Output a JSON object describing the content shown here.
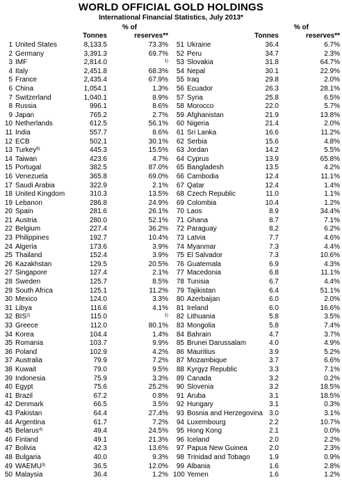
{
  "title": "WORLD OFFICIAL GOLD HOLDINGS",
  "subtitle": "International Financial Statistics, July 2013*",
  "headers": {
    "tonnes": "Tonnes",
    "pct_line1": "% of",
    "pct_line2": "reserves**"
  },
  "left": [
    {
      "rank": "1",
      "name": "United States",
      "tonnes": "8,133.5",
      "pct": "73.3%"
    },
    {
      "rank": "2",
      "name": "Germany",
      "tonnes": "3,391.3",
      "pct": "69.7%"
    },
    {
      "rank": "3",
      "name": "IMF",
      "tonnes": "2,814.0",
      "pct": "",
      "pct_note": "1)"
    },
    {
      "rank": "4",
      "name": "Italy",
      "tonnes": "2,451.8",
      "pct": "68.3%"
    },
    {
      "rank": "5",
      "name": "France",
      "tonnes": "2,435.4",
      "pct": "67.9%"
    },
    {
      "rank": "6",
      "name": "China",
      "tonnes": "1,054.1",
      "pct": "1.3%"
    },
    {
      "rank": "7",
      "name": "Switzerland",
      "tonnes": "1,040.1",
      "pct": "8.9%"
    },
    {
      "rank": "8",
      "name": "Russia",
      "tonnes": "996.1",
      "pct": "8.6%"
    },
    {
      "rank": "9",
      "name": "Japan",
      "tonnes": "765.2",
      "pct": "2.7%"
    },
    {
      "rank": "10",
      "name": "Netherlands",
      "tonnes": "612.5",
      "pct": "56.1%"
    },
    {
      "rank": "11",
      "name": "India",
      "tonnes": "557.7",
      "pct": "8.6%"
    },
    {
      "rank": "12",
      "name": "ECB",
      "tonnes": "502.1",
      "pct": "30.1%"
    },
    {
      "rank": "13",
      "name": "Turkey",
      "name_note": "6)",
      "tonnes": "445.3",
      "pct": "15.5%"
    },
    {
      "rank": "14",
      "name": "Taiwan",
      "tonnes": "423.6",
      "pct": "4.7%"
    },
    {
      "rank": "15",
      "name": "Portugal",
      "tonnes": "382.5",
      "pct": "87.0%"
    },
    {
      "rank": "16",
      "name": "Venezuela",
      "tonnes": "365.8",
      "pct": "69.0%"
    },
    {
      "rank": "17",
      "name": "Saudi Arabia",
      "tonnes": "322.9",
      "pct": "2.1%"
    },
    {
      "rank": "18",
      "name": "United Kingdom",
      "tonnes": "310.3",
      "pct": "13.5%"
    },
    {
      "rank": "19",
      "name": "Lebanon",
      "tonnes": "286.8",
      "pct": "24.9%"
    },
    {
      "rank": "20",
      "name": "Spain",
      "tonnes": "281.6",
      "pct": "26.1%"
    },
    {
      "rank": "21",
      "name": "Austria",
      "tonnes": "280.0",
      "pct": "52.1%"
    },
    {
      "rank": "22",
      "name": "Belgium",
      "tonnes": "227.4",
      "pct": "36.2%"
    },
    {
      "rank": "23",
      "name": "Philippines",
      "tonnes": "192.7",
      "pct": "10.4%"
    },
    {
      "rank": "24",
      "name": "Algeria",
      "tonnes": "173.6",
      "pct": "3.9%"
    },
    {
      "rank": "25",
      "name": "Thailand",
      "tonnes": "152.4",
      "pct": "3.9%"
    },
    {
      "rank": "26",
      "name": "Kazakhstan",
      "tonnes": "129.5",
      "pct": "20.5%"
    },
    {
      "rank": "27",
      "name": "Singapore",
      "tonnes": "127.4",
      "pct": "2.1%"
    },
    {
      "rank": "28",
      "name": "Sweden",
      "tonnes": "125.7",
      "pct": "8.5%"
    },
    {
      "rank": "29",
      "name": "South Africa",
      "tonnes": "125.1",
      "pct": "11.2%"
    },
    {
      "rank": "30",
      "name": "Mexico",
      "tonnes": "124.0",
      "pct": "3.3%"
    },
    {
      "rank": "31",
      "name": "Libya",
      "tonnes": "116.6",
      "pct": "4.1%"
    },
    {
      "rank": "32",
      "name": "BIS",
      "name_note": "2)",
      "tonnes": "115.0",
      "pct": "",
      "pct_note": "1)"
    },
    {
      "rank": "33",
      "name": "Greece",
      "tonnes": "112.0",
      "pct": "80.1%"
    },
    {
      "rank": "34",
      "name": "Korea",
      "tonnes": "104.4",
      "pct": "1.4%"
    },
    {
      "rank": "35",
      "name": "Romania",
      "tonnes": "103.7",
      "pct": "9.9%"
    },
    {
      "rank": "36",
      "name": "Poland",
      "tonnes": "102.9",
      "pct": "4.2%"
    },
    {
      "rank": "37",
      "name": "Australia",
      "tonnes": "79.9",
      "pct": "7.2%"
    },
    {
      "rank": "38",
      "name": "Kuwait",
      "tonnes": "79.0",
      "pct": "9.5%"
    },
    {
      "rank": "39",
      "name": "Indonesia",
      "tonnes": "75.9",
      "pct": "3.3%"
    },
    {
      "rank": "40",
      "name": "Egypt",
      "tonnes": "75.6",
      "pct": "25.2%"
    },
    {
      "rank": "41",
      "name": "Brazil",
      "tonnes": "67.2",
      "pct": "0.8%"
    },
    {
      "rank": "42",
      "name": "Denmark",
      "tonnes": "66.5",
      "pct": "3.5%"
    },
    {
      "rank": "43",
      "name": "Pakistan",
      "tonnes": "64.4",
      "pct": "27.4%"
    },
    {
      "rank": "44",
      "name": "Argentina",
      "tonnes": "61.7",
      "pct": "7.2%"
    },
    {
      "rank": "45",
      "name": "Belarus",
      "name_note": "4)",
      "tonnes": "49.4",
      "pct": "24.5%"
    },
    {
      "rank": "46",
      "name": "Finland",
      "tonnes": "49.1",
      "pct": "21.3%"
    },
    {
      "rank": "47",
      "name": "Bolivia",
      "tonnes": "42.3",
      "pct": "13.6%"
    },
    {
      "rank": "48",
      "name": "Bulgaria",
      "tonnes": "40.0",
      "pct": "9.3%"
    },
    {
      "rank": "49",
      "name": "WAEMU",
      "name_note": "3)",
      "tonnes": "36.5",
      "pct": "12.0%"
    },
    {
      "rank": "50",
      "name": "Malaysia",
      "tonnes": "36.4",
      "pct": "1.2%"
    }
  ],
  "right": [
    {
      "rank": "51",
      "name": "Ukraine",
      "tonnes": "36.4",
      "pct": "6.7%"
    },
    {
      "rank": "52",
      "name": "Peru",
      "tonnes": "34.7",
      "pct": "2.3%"
    },
    {
      "rank": "53",
      "name": "Slovakia",
      "tonnes": "31.8",
      "pct": "64.7%"
    },
    {
      "rank": "54",
      "name": "Nepal",
      "tonnes": "30.1",
      "pct": "22.9%"
    },
    {
      "rank": "55",
      "name": "Iraq",
      "tonnes": "29.8",
      "pct": "2.0%"
    },
    {
      "rank": "56",
      "name": "Ecuador",
      "tonnes": "26.3",
      "pct": "28.1%"
    },
    {
      "rank": "57",
      "name": "Syria",
      "tonnes": "25.8",
      "pct": "6.5%"
    },
    {
      "rank": "58",
      "name": "Morocco",
      "tonnes": "22.0",
      "pct": "5.7%"
    },
    {
      "rank": "59",
      "name": "Afghanistan",
      "tonnes": "21.9",
      "pct": "13.8%"
    },
    {
      "rank": "60",
      "name": "Nigeria",
      "tonnes": "21.4",
      "pct": "2.0%"
    },
    {
      "rank": "61",
      "name": "Sri Lanka",
      "tonnes": "16.6",
      "pct": "11.2%"
    },
    {
      "rank": "62",
      "name": "Serbia",
      "tonnes": "15.6",
      "pct": "4.8%"
    },
    {
      "rank": "63",
      "name": "Jordan",
      "tonnes": "14.2",
      "pct": "5.5%"
    },
    {
      "rank": "64",
      "name": "Cyprus",
      "tonnes": "13.9",
      "pct": "65.8%"
    },
    {
      "rank": "65",
      "name": "Bangladesh",
      "tonnes": "13.5",
      "pct": "4.2%"
    },
    {
      "rank": "66",
      "name": "Cambodia",
      "tonnes": "12.4",
      "pct": "11.1%"
    },
    {
      "rank": "67",
      "name": "Qatar",
      "tonnes": "12.4",
      "pct": "1.4%"
    },
    {
      "rank": "68",
      "name": "Czech Republic",
      "tonnes": "11.0",
      "pct": "1.1%"
    },
    {
      "rank": "69",
      "name": "Colombia",
      "tonnes": "10.4",
      "pct": "1.2%"
    },
    {
      "rank": "70",
      "name": "Laos",
      "tonnes": "8.9",
      "pct": "34.4%"
    },
    {
      "rank": "71",
      "name": "Ghana",
      "tonnes": "8.7",
      "pct": "7.1%"
    },
    {
      "rank": "72",
      "name": "Paraguay",
      "tonnes": "8.2",
      "pct": "6.2%"
    },
    {
      "rank": "73",
      "name": "Latvia",
      "tonnes": "7.7",
      "pct": "4.6%"
    },
    {
      "rank": "74",
      "name": "Myanmar",
      "tonnes": "7.3",
      "pct": "4.4%"
    },
    {
      "rank": "75",
      "name": "El Salvador",
      "tonnes": "7.3",
      "pct": "10.6%"
    },
    {
      "rank": "76",
      "name": "Guatemala",
      "tonnes": "6.9",
      "pct": "4.3%"
    },
    {
      "rank": "77",
      "name": "Macedonia",
      "tonnes": "6.8",
      "pct": "11.1%"
    },
    {
      "rank": "78",
      "name": "Tunisia",
      "tonnes": "6.7",
      "pct": "4.4%"
    },
    {
      "rank": "79",
      "name": "Tajikistan",
      "tonnes": "6.4",
      "pct": "51.1%"
    },
    {
      "rank": "80",
      "name": "Azerbaijan",
      "tonnes": "6.0",
      "pct": "2.0%"
    },
    {
      "rank": "81",
      "name": "Ireland",
      "tonnes": "6.0",
      "pct": "16.6%"
    },
    {
      "rank": "82",
      "name": "Lithuania",
      "tonnes": "5.8",
      "pct": "3.5%"
    },
    {
      "rank": "83",
      "name": "Mongolia",
      "tonnes": "5.8",
      "pct": "7.4%"
    },
    {
      "rank": "84",
      "name": "Bahrain",
      "tonnes": "4.7",
      "pct": "3.7%"
    },
    {
      "rank": "85",
      "name": "Brunei Darussalam",
      "tonnes": "4.0",
      "pct": "4.9%"
    },
    {
      "rank": "86",
      "name": "Mauritius",
      "tonnes": "3.9",
      "pct": "5.2%"
    },
    {
      "rank": "87",
      "name": "Mozambique",
      "tonnes": "3.7",
      "pct": "6.6%"
    },
    {
      "rank": "88",
      "name": "Kyrgyz Republic",
      "tonnes": "3.3",
      "pct": "7.1%"
    },
    {
      "rank": "89",
      "name": "Canada",
      "tonnes": "3.2",
      "pct": "0.2%"
    },
    {
      "rank": "90",
      "name": "Slovenia",
      "tonnes": "3.2",
      "pct": "18.5%"
    },
    {
      "rank": "91",
      "name": "Aruba",
      "tonnes": "3.1",
      "pct": "18.5%"
    },
    {
      "rank": "92",
      "name": "Hungary",
      "tonnes": "3.1",
      "pct": "0.3%"
    },
    {
      "rank": "93",
      "name": "Bosnia and Herzegovina",
      "tonnes": "3.0",
      "pct": "3.1%"
    },
    {
      "rank": "94",
      "name": "Luxembourg",
      "tonnes": "2.2",
      "pct": "10.7%"
    },
    {
      "rank": "95",
      "name": "Hong Kong",
      "tonnes": "2.1",
      "pct": "0.0%"
    },
    {
      "rank": "96",
      "name": "Iceland",
      "tonnes": "2.0",
      "pct": "2.2%"
    },
    {
      "rank": "97",
      "name": "Papua New Guinea",
      "tonnes": "2.0",
      "pct": "2.3%"
    },
    {
      "rank": "98",
      "name": "Trinidad and Tobago",
      "tonnes": "1.9",
      "pct": "0.9%"
    },
    {
      "rank": "99",
      "name": "Albania",
      "tonnes": "1.6",
      "pct": "2.8%"
    },
    {
      "rank": "100",
      "name": "Yemen",
      "tonnes": "1.6",
      "pct": "1.2%"
    }
  ]
}
